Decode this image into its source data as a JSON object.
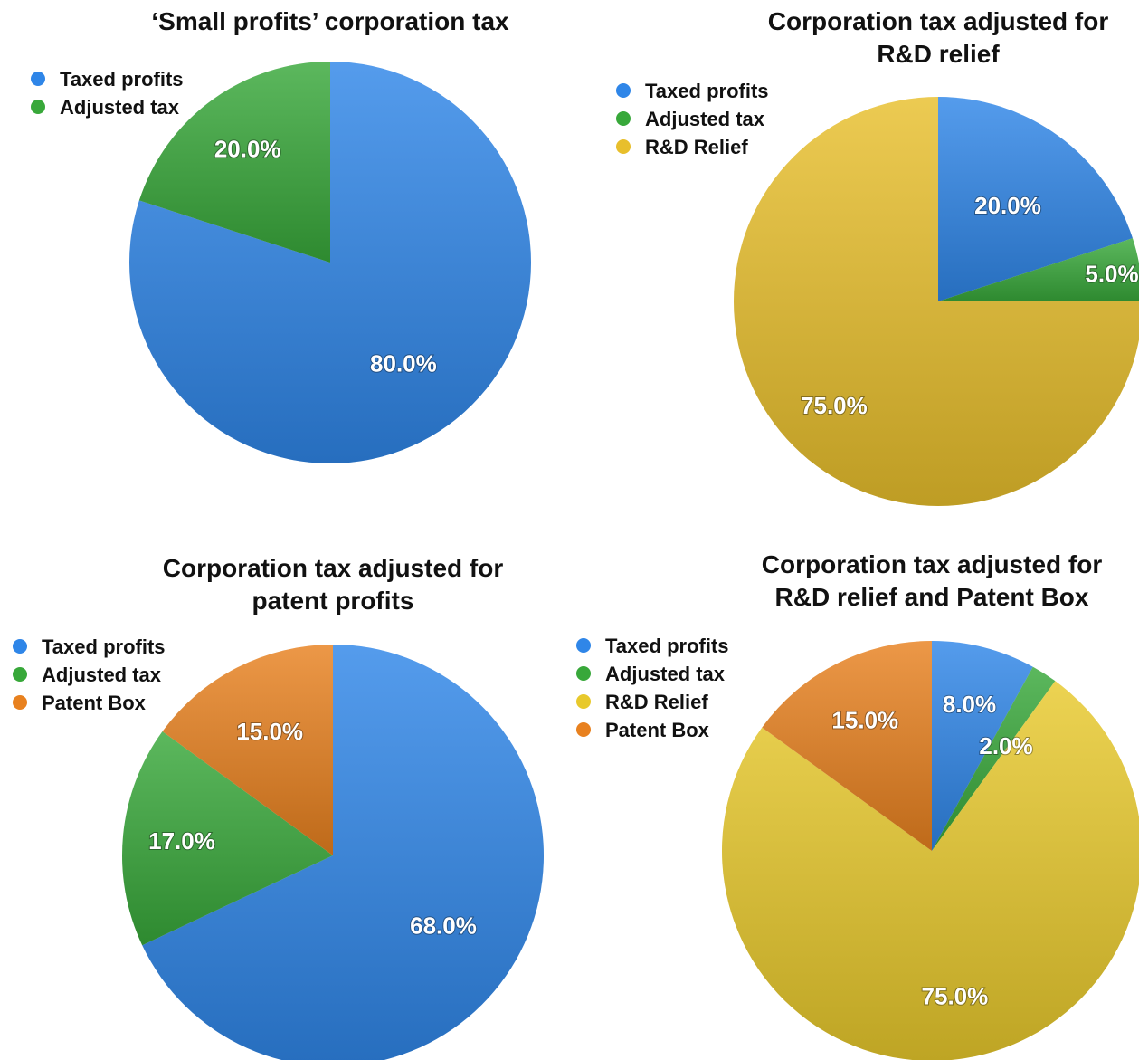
{
  "chart_data": [
    {
      "type": "pie",
      "title": "‘Small profits’ corporation tax",
      "slices": [
        {
          "name": "Taxed profits",
          "value": 80.0,
          "label": "80.0%",
          "color": "#2f86e8"
        },
        {
          "name": "Adjusted tax",
          "value": 20.0,
          "label": "20.0%",
          "color": "#38a83a"
        }
      ],
      "legend": [
        {
          "name": "Taxed profits",
          "color": "#2f86e8"
        },
        {
          "name": "Adjusted tax",
          "color": "#38a83a"
        }
      ],
      "legend_position": "top-left"
    },
    {
      "type": "pie",
      "title": "Corporation tax adjusted for R&D relief",
      "title_lines": [
        "Corporation tax adjusted for",
        "R&D relief"
      ],
      "slices": [
        {
          "name": "Taxed profits",
          "value": 20.0,
          "label": "20.0%",
          "color": "#2f86e8"
        },
        {
          "name": "Adjusted tax",
          "value": 5.0,
          "label": "5.0%",
          "color": "#38a83a"
        },
        {
          "name": "R&D Relief",
          "value": 75.0,
          "label": "75.0%",
          "color": "#e8bf2c"
        }
      ],
      "legend": [
        {
          "name": "Taxed profits",
          "color": "#2f86e8"
        },
        {
          "name": "Adjusted tax",
          "color": "#38a83a"
        },
        {
          "name": "R&D Relief",
          "color": "#e8bf2c"
        }
      ],
      "legend_position": "top-left"
    },
    {
      "type": "pie",
      "title": "Corporation tax adjusted for patent profits",
      "title_lines": [
        "Corporation tax adjusted for",
        "patent profits"
      ],
      "slices": [
        {
          "name": "Taxed profits",
          "value": 68.0,
          "label": "68.0%",
          "color": "#2f86e8"
        },
        {
          "name": "Adjusted tax",
          "value": 17.0,
          "label": "17.0%",
          "color": "#38a83a"
        },
        {
          "name": "Patent Box",
          "value": 15.0,
          "label": "15.0%",
          "color": "#e8811f"
        }
      ],
      "legend": [
        {
          "name": "Taxed profits",
          "color": "#2f86e8"
        },
        {
          "name": "Adjusted tax",
          "color": "#38a83a"
        },
        {
          "name": "Patent Box",
          "color": "#e8811f"
        }
      ],
      "legend_position": "top-left"
    },
    {
      "type": "pie",
      "title": "Corporation tax adjusted for R&D relief and Patent Box",
      "title_lines": [
        "Corporation tax adjusted for",
        "R&D relief and Patent Box"
      ],
      "slices": [
        {
          "name": "Taxed profits",
          "value": 8.0,
          "label": "8.0%",
          "color": "#2f86e8"
        },
        {
          "name": "Adjusted tax",
          "value": 2.0,
          "label": "2.0%",
          "color": "#38a83a"
        },
        {
          "name": "R&D Relief",
          "value": 75.0,
          "label": "75.0%",
          "color": "#e8c92c"
        },
        {
          "name": "Patent Box",
          "value": 15.0,
          "label": "15.0%",
          "color": "#e8811f"
        }
      ],
      "legend": [
        {
          "name": "Taxed profits",
          "color": "#2f86e8"
        },
        {
          "name": "Adjusted tax",
          "color": "#38a83a"
        },
        {
          "name": "R&D Relief",
          "color": "#e8c92c"
        },
        {
          "name": "Patent Box",
          "color": "#e8811f"
        }
      ],
      "legend_position": "top-left"
    }
  ]
}
